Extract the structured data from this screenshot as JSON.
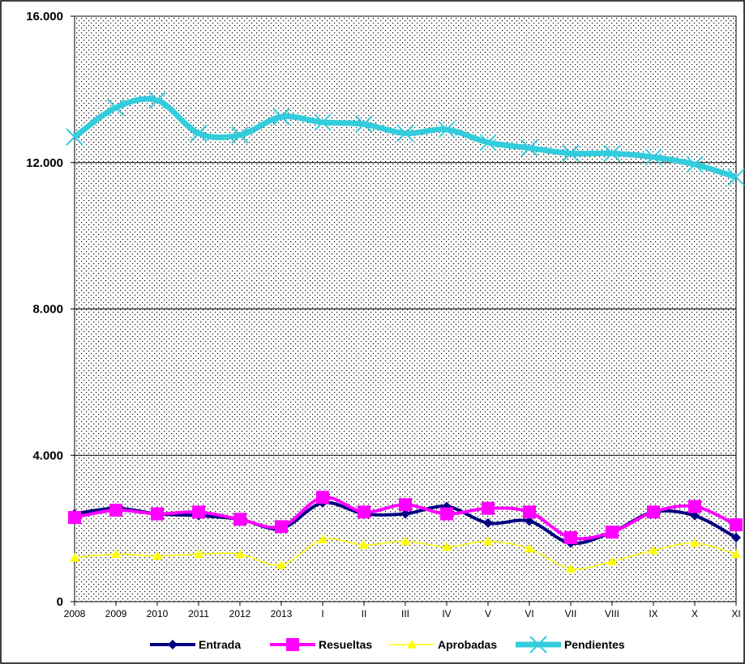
{
  "chart_data": {
    "type": "line",
    "title": "",
    "xlabel": "",
    "ylabel": "",
    "ylim": [
      0,
      16000
    ],
    "yticks": [
      0,
      4000,
      8000,
      12000,
      16000
    ],
    "ytick_labels": [
      "0",
      "4.000",
      "8.000",
      "12.000",
      "16.000"
    ],
    "grid": "horizontal",
    "legend_position": "bottom",
    "categories": [
      "2008",
      "2009",
      "2010",
      "2011",
      "2012",
      "2013",
      "I",
      "II",
      "III",
      "IV",
      "V",
      "VI",
      "VII",
      "VIII",
      "IX",
      "X",
      "XI"
    ],
    "series": [
      {
        "name": "Entrada",
        "color": "#000080",
        "marker": "diamond",
        "values": [
          2400,
          2550,
          2400,
          2350,
          2250,
          2000,
          2700,
          2400,
          2400,
          2600,
          2150,
          2200,
          1600,
          1900,
          2450,
          2350,
          1750
        ]
      },
      {
        "name": "Resueltas",
        "color": "#ff00ff",
        "marker": "square",
        "values": [
          2300,
          2500,
          2400,
          2450,
          2250,
          2050,
          2850,
          2450,
          2650,
          2400,
          2550,
          2450,
          1750,
          1900,
          2450,
          2600,
          2100
        ]
      },
      {
        "name": "Aprobadas",
        "color": "#ffff00",
        "marker": "triangle",
        "values": [
          1200,
          1300,
          1250,
          1300,
          1300,
          1000,
          1700,
          1550,
          1650,
          1500,
          1650,
          1450,
          900,
          1100,
          1400,
          1600,
          1300
        ]
      },
      {
        "name": "Pendientes",
        "color": "#33ccdd",
        "marker": "x",
        "values": [
          12700,
          13500,
          13700,
          12800,
          12750,
          13250,
          13100,
          13050,
          12800,
          12900,
          12550,
          12400,
          12250,
          12250,
          12150,
          11950,
          11600
        ]
      }
    ]
  }
}
